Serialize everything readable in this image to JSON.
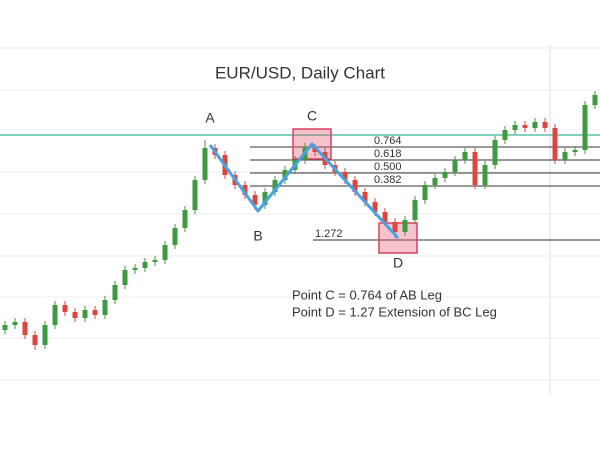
{
  "chart_data": {
    "type": "candlestick",
    "title": "EUR/USD, Daily Chart",
    "ylim": [
      0,
      400
    ],
    "up_color": "#3e9a3e",
    "down_color": "#e0443e",
    "open": [
      70,
      75,
      78,
      65,
      55,
      75,
      95,
      88,
      82,
      90,
      85,
      100,
      115,
      130,
      132,
      138,
      140,
      155,
      172,
      190,
      220,
      252,
      245,
      225,
      215,
      205,
      195,
      208,
      220,
      230,
      240,
      252,
      248,
      235,
      228,
      220,
      208,
      198,
      188,
      178,
      168,
      180,
      200,
      215,
      222,
      228,
      240,
      248,
      215,
      235,
      260,
      270,
      275,
      272,
      278,
      272,
      240,
      248,
      250,
      295
    ],
    "close": [
      75,
      78,
      65,
      55,
      75,
      95,
      88,
      82,
      90,
      85,
      100,
      115,
      130,
      132,
      138,
      140,
      155,
      172,
      190,
      220,
      252,
      245,
      225,
      215,
      205,
      195,
      208,
      220,
      230,
      240,
      252,
      248,
      235,
      228,
      220,
      208,
      198,
      188,
      178,
      168,
      180,
      200,
      215,
      222,
      228,
      240,
      248,
      215,
      235,
      260,
      270,
      275,
      272,
      278,
      272,
      240,
      248,
      250,
      295,
      305
    ],
    "high": [
      79,
      82,
      82,
      69,
      79,
      99,
      99,
      92,
      94,
      94,
      104,
      119,
      134,
      136,
      142,
      144,
      159,
      176,
      194,
      224,
      260,
      256,
      249,
      229,
      219,
      209,
      212,
      224,
      234,
      244,
      257,
      256,
      252,
      239,
      232,
      224,
      212,
      202,
      192,
      182,
      184,
      204,
      219,
      226,
      232,
      244,
      252,
      252,
      239,
      264,
      274,
      279,
      279,
      282,
      282,
      276,
      252,
      254,
      299,
      309
    ],
    "low": [
      66,
      71,
      61,
      50,
      51,
      71,
      84,
      78,
      78,
      81,
      81,
      96,
      111,
      126,
      128,
      134,
      136,
      151,
      168,
      186,
      216,
      241,
      221,
      211,
      201,
      190,
      191,
      204,
      216,
      226,
      236,
      244,
      231,
      224,
      216,
      204,
      194,
      184,
      174,
      162,
      164,
      176,
      196,
      211,
      218,
      224,
      236,
      211,
      211,
      231,
      256,
      266,
      268,
      268,
      268,
      236,
      236,
      244,
      246,
      291
    ],
    "resistance": {
      "level": 265,
      "color": "#5cc4a8"
    },
    "fib_levels": [
      {
        "label": "0.764",
        "level": 253,
        "start": 24.5
      },
      {
        "label": "0.618",
        "level": 240,
        "start": 24.5
      },
      {
        "label": "0.500",
        "level": 227,
        "start": 24.5
      },
      {
        "label": "0.382",
        "level": 214,
        "start": 24.5
      },
      {
        "label": "1.272",
        "level": 160,
        "start": 30.8
      }
    ],
    "pattern_color": "#4aa3e0",
    "pattern_points": [
      {
        "label": "A",
        "x": 20.5,
        "price": 255,
        "label_position": "above",
        "highlight": false
      },
      {
        "label": "B",
        "x": 25.3,
        "price": 189,
        "label_position": "below",
        "highlight": false
      },
      {
        "label": "C",
        "x": 30.7,
        "price": 256,
        "label_position": "above",
        "highlight": true
      },
      {
        "label": "D",
        "x": 39.3,
        "price": 162,
        "label_position": "below",
        "highlight": true
      }
    ],
    "annotations": [
      "Point C = 0.764 of AB Leg",
      "Point D = 1.27 Extension of BC Leg"
    ]
  }
}
